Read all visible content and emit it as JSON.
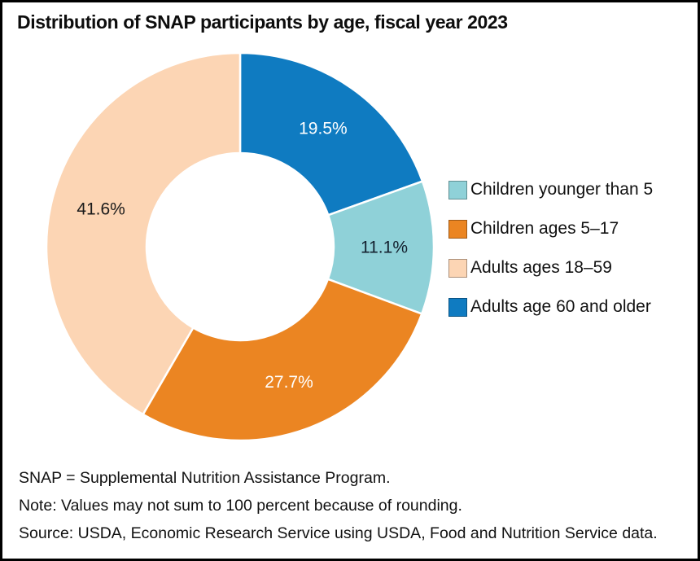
{
  "title": "Distribution of SNAP participants by age, fiscal year 2023",
  "chart_data": {
    "type": "pie",
    "subtype": "donut",
    "title": "Distribution of SNAP participants by age, fiscal year 2023",
    "start_angle": "top",
    "direction": "clockwise",
    "inner_radius_ratio": 0.48,
    "legend_position": "right",
    "segments": [
      {
        "id": "adults-60-older",
        "label": "Adults age 60 and older",
        "value": 19.5,
        "display": "19.5%",
        "color": "#0f7bc1",
        "label_color": "#ffffff"
      },
      {
        "id": "children-under-5",
        "label": "Children younger than 5",
        "value": 11.1,
        "display": "11.1%",
        "color": "#8fd1d8",
        "label_color": "#13202e"
      },
      {
        "id": "children-5-17",
        "label": "Children ages 5–17",
        "value": 27.7,
        "display": "27.7%",
        "color": "#eb8522",
        "label_color": "#ffffff"
      },
      {
        "id": "adults-18-59",
        "label": "Adults ages 18–59",
        "value": 41.6,
        "display": "41.6%",
        "color": "#fcd5b4",
        "label_color": "#1a1a1a"
      }
    ]
  },
  "legend": {
    "items": [
      {
        "label": "Children younger than 5",
        "color": "#8fd1d8"
      },
      {
        "label": "Children ages 5–17",
        "color": "#eb8522"
      },
      {
        "label": "Adults ages 18–59",
        "color": "#fcd5b4"
      },
      {
        "label": "Adults age 60 and older",
        "color": "#0f7bc1"
      }
    ]
  },
  "footnotes": [
    "SNAP = Supplemental Nutrition Assistance Program.",
    "Note: Values may not sum to 100 percent because of rounding.",
    "Source: USDA, Economic Research Service using USDA, Food and Nutrition Service data."
  ]
}
